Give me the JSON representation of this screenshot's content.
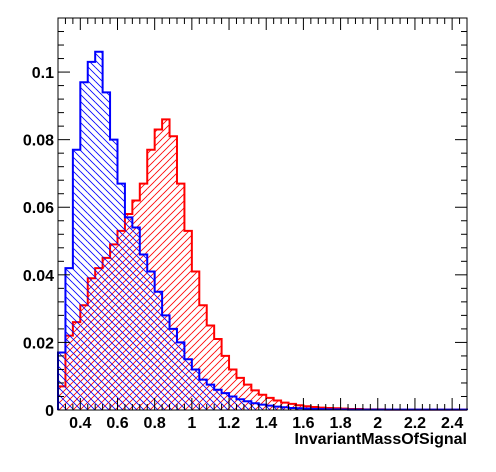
{
  "chart_data": {
    "type": "histogram",
    "title": "",
    "xlabel": "InvariantMassOfSignal",
    "ylabel": "",
    "xlim": [
      0.28,
      2.48
    ],
    "ylim": [
      0,
      0.116
    ],
    "grid": false,
    "bin_start": 0.28,
    "bin_width": 0.04,
    "x_ticks": [
      {
        "value": 0.4,
        "label": "0.4"
      },
      {
        "value": 0.6,
        "label": "0.6"
      },
      {
        "value": 0.8,
        "label": "0.8"
      },
      {
        "value": 1.0,
        "label": "1"
      },
      {
        "value": 1.2,
        "label": "1.2"
      },
      {
        "value": 1.4,
        "label": "1.4"
      },
      {
        "value": 1.6,
        "label": "1.6"
      },
      {
        "value": 1.8,
        "label": "1.8"
      },
      {
        "value": 2.0,
        "label": "2"
      },
      {
        "value": 2.2,
        "label": "2.2"
      },
      {
        "value": 2.4,
        "label": "2.4"
      }
    ],
    "y_ticks": [
      {
        "value": 0,
        "label": "0"
      },
      {
        "value": 0.02,
        "label": "0.02"
      },
      {
        "value": 0.04,
        "label": "0.04"
      },
      {
        "value": 0.06,
        "label": "0.06"
      },
      {
        "value": 0.08,
        "label": "0.08"
      },
      {
        "value": 0.1,
        "label": "0.1"
      }
    ],
    "series": [
      {
        "color": "#0000ff",
        "hatch": "backslash",
        "values": [
          0.017,
          0.042,
          0.077,
          0.097,
          0.103,
          0.106,
          0.094,
          0.08,
          0.067,
          0.057,
          0.054,
          0.046,
          0.041,
          0.035,
          0.028,
          0.024,
          0.02,
          0.015,
          0.012,
          0.009,
          0.0075,
          0.006,
          0.005,
          0.004,
          0.0032,
          0.0026,
          0.002,
          0.0016,
          0.0013,
          0.001,
          0.0008,
          0.0006,
          0.0005,
          0.0004,
          0.0003,
          0.00025,
          0.0002,
          0.0002,
          0.00015,
          0.0001,
          0.0001,
          0.0001,
          0.0001,
          0.0001,
          0.0001,
          0.0001,
          0.0001,
          0.0001,
          0.0001,
          0.0001,
          0.0001,
          0.0001,
          0.0001,
          0.0001,
          0.0001
        ]
      },
      {
        "color": "#ff0000",
        "hatch": "slash",
        "values": [
          0.007,
          0.022,
          0.026,
          0.031,
          0.039,
          0.042,
          0.045,
          0.049,
          0.053,
          0.058,
          0.062,
          0.067,
          0.077,
          0.083,
          0.086,
          0.081,
          0.067,
          0.053,
          0.041,
          0.031,
          0.025,
          0.021,
          0.016,
          0.012,
          0.0095,
          0.0075,
          0.0058,
          0.0045,
          0.0036,
          0.0028,
          0.0022,
          0.0018,
          0.0014,
          0.0011,
          0.0009,
          0.0007,
          0.0006,
          0.0005,
          0.0004,
          0.0003,
          0.0003,
          0.0002,
          0.0002,
          0.0002,
          0.0001,
          0.0001,
          0.0001,
          0.0001,
          0.0001,
          0.0001,
          0.0001,
          0.0001,
          0.0001,
          0.0001,
          0.0001
        ]
      }
    ]
  }
}
